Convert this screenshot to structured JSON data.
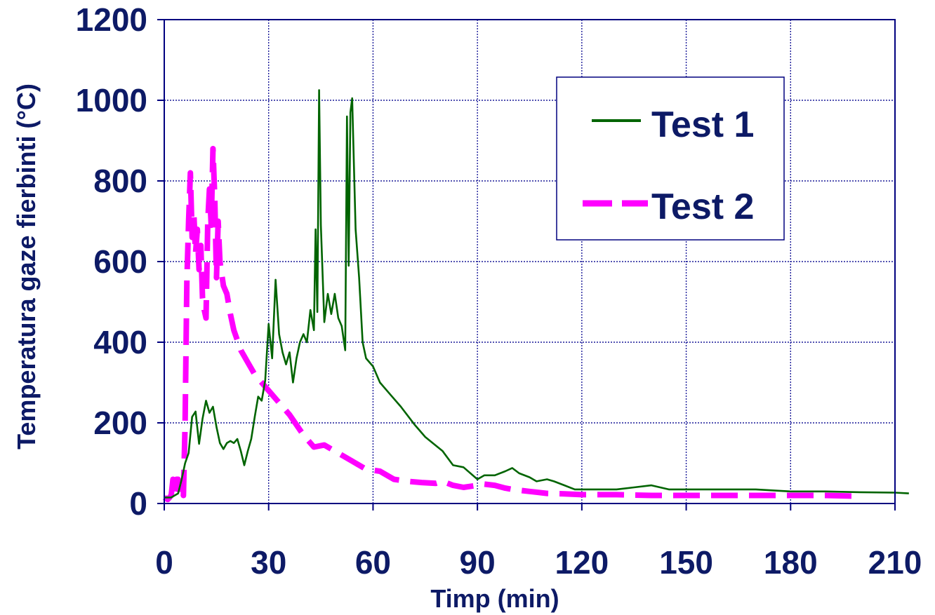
{
  "chart_data": {
    "type": "line",
    "xlabel": "Timp (min)",
    "ylabel": "Temperatura gaze fierbinti (°C)",
    "xlim": [
      0,
      210
    ],
    "ylim": [
      0,
      1200
    ],
    "x_ticks": [
      "0",
      "30",
      "60",
      "90",
      "120",
      "150",
      "180",
      "210"
    ],
    "y_ticks": [
      "0",
      "200",
      "400",
      "600",
      "800",
      "1000",
      "1200"
    ],
    "grid": true,
    "legend_position": "top-right",
    "colors": {
      "axis": "#00007f",
      "text": "#0d1a66",
      "grid": "#1a1a99"
    },
    "series": [
      {
        "name": "Test 1",
        "color": "#006400",
        "style": "solid",
        "points": [
          [
            0,
            15
          ],
          [
            2,
            15
          ],
          [
            4,
            25
          ],
          [
            5,
            60
          ],
          [
            6,
            100
          ],
          [
            7,
            125
          ],
          [
            8,
            215
          ],
          [
            9,
            228
          ],
          [
            10,
            148
          ],
          [
            11,
            210
          ],
          [
            12,
            255
          ],
          [
            13,
            225
          ],
          [
            14,
            240
          ],
          [
            15,
            190
          ],
          [
            16,
            150
          ],
          [
            17,
            135
          ],
          [
            18,
            150
          ],
          [
            19,
            155
          ],
          [
            20,
            150
          ],
          [
            21,
            160
          ],
          [
            22,
            130
          ],
          [
            23,
            95
          ],
          [
            24,
            130
          ],
          [
            25,
            160
          ],
          [
            26,
            215
          ],
          [
            27,
            265
          ],
          [
            28,
            255
          ],
          [
            29,
            305
          ],
          [
            30,
            445
          ],
          [
            31,
            360
          ],
          [
            32,
            555
          ],
          [
            33,
            420
          ],
          [
            34,
            375
          ],
          [
            35,
            345
          ],
          [
            36,
            375
          ],
          [
            37,
            300
          ],
          [
            38,
            360
          ],
          [
            39,
            400
          ],
          [
            40,
            420
          ],
          [
            41,
            400
          ],
          [
            42,
            480
          ],
          [
            43,
            430
          ],
          [
            43.5,
            680
          ],
          [
            44,
            475
          ],
          [
            44.5,
            1025
          ],
          [
            45,
            690
          ],
          [
            46,
            450
          ],
          [
            47,
            520
          ],
          [
            48,
            470
          ],
          [
            49,
            520
          ],
          [
            50,
            460
          ],
          [
            51,
            440
          ],
          [
            52,
            380
          ],
          [
            52.5,
            960
          ],
          [
            53,
            590
          ],
          [
            53.5,
            970
          ],
          [
            54,
            1005
          ],
          [
            55,
            680
          ],
          [
            56,
            560
          ],
          [
            57,
            400
          ],
          [
            58,
            360
          ],
          [
            60,
            340
          ],
          [
            62,
            300
          ],
          [
            65,
            270
          ],
          [
            68,
            240
          ],
          [
            72,
            195
          ],
          [
            75,
            165
          ],
          [
            80,
            130
          ],
          [
            83,
            95
          ],
          [
            86,
            90
          ],
          [
            90,
            60
          ],
          [
            92,
            70
          ],
          [
            95,
            70
          ],
          [
            98,
            80
          ],
          [
            100,
            88
          ],
          [
            102,
            75
          ],
          [
            105,
            65
          ],
          [
            107,
            55
          ],
          [
            110,
            60
          ],
          [
            112,
            55
          ],
          [
            115,
            45
          ],
          [
            118,
            35
          ],
          [
            125,
            35
          ],
          [
            130,
            35
          ],
          [
            135,
            40
          ],
          [
            140,
            45
          ],
          [
            145,
            35
          ],
          [
            150,
            35
          ],
          [
            160,
            35
          ],
          [
            170,
            35
          ],
          [
            180,
            30
          ],
          [
            190,
            30
          ],
          [
            200,
            28
          ],
          [
            210,
            27
          ],
          [
            214,
            25
          ]
        ]
      },
      {
        "name": "Test 2",
        "color": "#ff00ff",
        "style": "dashed",
        "points": [
          [
            0,
            15
          ],
          [
            1,
            10
          ],
          [
            2,
            20
          ],
          [
            2.5,
            60
          ],
          [
            3,
            30
          ],
          [
            3.5,
            60
          ],
          [
            4,
            60
          ],
          [
            4.5,
            25
          ],
          [
            5,
            35
          ],
          [
            5.5,
            20
          ],
          [
            6,
            200
          ],
          [
            6.5,
            550
          ],
          [
            7,
            700
          ],
          [
            7.5,
            820
          ],
          [
            8,
            660
          ],
          [
            8.5,
            720
          ],
          [
            9,
            620
          ],
          [
            9.5,
            680
          ],
          [
            10,
            580
          ],
          [
            10.5,
            640
          ],
          [
            11,
            510
          ],
          [
            11.5,
            480
          ],
          [
            12,
            460
          ],
          [
            12.5,
            700
          ],
          [
            13,
            780
          ],
          [
            13.5,
            690
          ],
          [
            14,
            880
          ],
          [
            14.5,
            760
          ],
          [
            15,
            560
          ],
          [
            15.5,
            700
          ],
          [
            16,
            600
          ],
          [
            17,
            540
          ],
          [
            18,
            520
          ],
          [
            19,
            470
          ],
          [
            20,
            430
          ],
          [
            22,
            380
          ],
          [
            24,
            350
          ],
          [
            26,
            320
          ],
          [
            28,
            300
          ],
          [
            30,
            280
          ],
          [
            33,
            250
          ],
          [
            36,
            220
          ],
          [
            40,
            170
          ],
          [
            43,
            140
          ],
          [
            46,
            145
          ],
          [
            50,
            125
          ],
          [
            54,
            105
          ],
          [
            58,
            85
          ],
          [
            62,
            80
          ],
          [
            66,
            60
          ],
          [
            70,
            55
          ],
          [
            74,
            52
          ],
          [
            78,
            50
          ],
          [
            80,
            55
          ],
          [
            83,
            45
          ],
          [
            86,
            40
          ],
          [
            90,
            45
          ],
          [
            92,
            48
          ],
          [
            95,
            45
          ],
          [
            98,
            38
          ],
          [
            100,
            35
          ],
          [
            105,
            30
          ],
          [
            110,
            25
          ],
          [
            115,
            24
          ],
          [
            120,
            22
          ],
          [
            130,
            22
          ],
          [
            140,
            20
          ],
          [
            150,
            20
          ],
          [
            160,
            20
          ],
          [
            170,
            20
          ],
          [
            180,
            20
          ],
          [
            190,
            20
          ],
          [
            200,
            18
          ]
        ]
      }
    ]
  }
}
